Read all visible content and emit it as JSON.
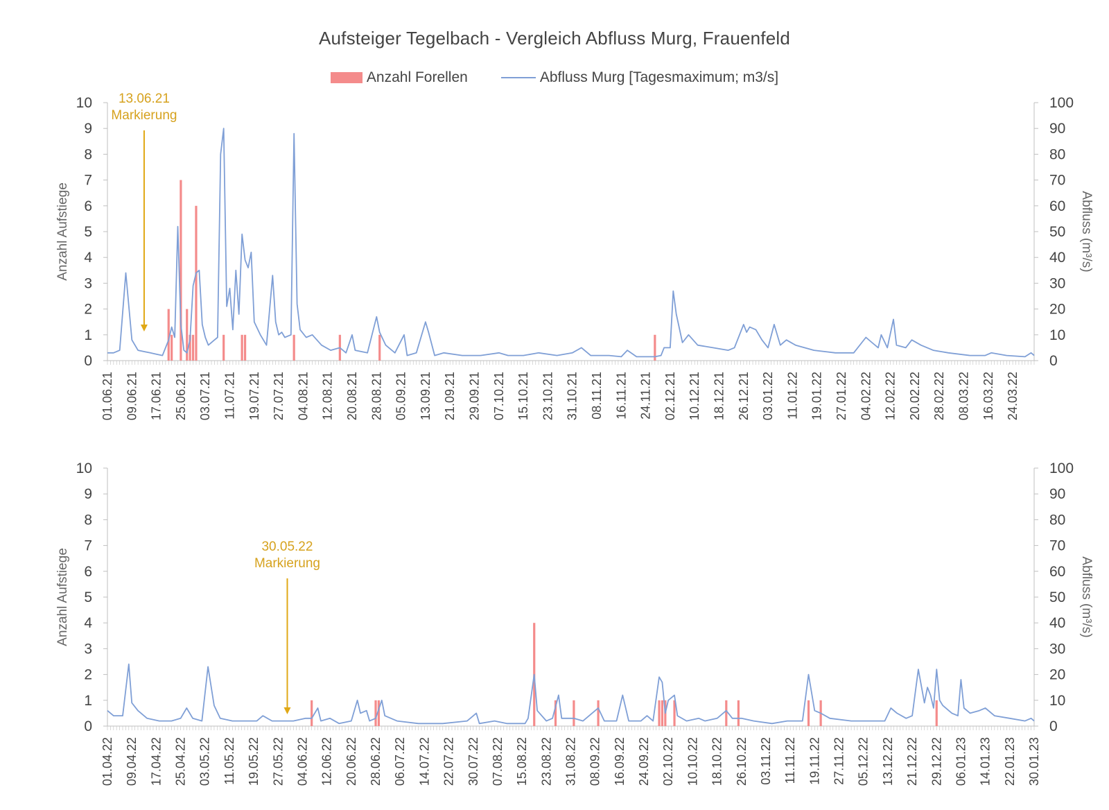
{
  "title": "Aufsteiger Tegelbach - Vergleich Abfluss Murg, Frauenfeld",
  "legend": {
    "bar_label": "Anzahl Forellen",
    "line_label": "Abfluss Murg [Tagesmaximum; m3/s]"
  },
  "colors": {
    "bar": "#f48b8b",
    "line": "#7f9fd6",
    "annotation": "#e0a815",
    "text": "#444444"
  },
  "chart_data": [
    {
      "type": "bar+line",
      "ylabel_left": "Anzahl Aufstiege",
      "ylabel_right": "Abfluss (m³/s)",
      "ylim_left": [
        0,
        10
      ],
      "ylim_right": [
        0,
        100
      ],
      "y_ticks_left": [
        "0",
        "1",
        "2",
        "3",
        "4",
        "5",
        "6",
        "7",
        "8",
        "9",
        "10"
      ],
      "y_ticks_right": [
        "0",
        "10",
        "20",
        "30",
        "40",
        "50",
        "60",
        "70",
        "80",
        "90",
        "100"
      ],
      "x_range": [
        "2021-06-01",
        "2022-03-31"
      ],
      "x_ticks": [
        "01.06.21",
        "09.06.21",
        "17.06.21",
        "25.06.21",
        "03.07.21",
        "11.07.21",
        "19.07.21",
        "27.07.21",
        "04.08.21",
        "12.08.21",
        "20.08.21",
        "28.08.21",
        "05.09.21",
        "13.09.21",
        "21.09.21",
        "29.09.21",
        "07.10.21",
        "15.10.21",
        "23.10.21",
        "31.10.21",
        "08.11.21",
        "16.11.21",
        "24.11.21",
        "02.12.21",
        "10.12.21",
        "18.12.21",
        "26.12.21",
        "03.01.22",
        "11.01.22",
        "19.01.22",
        "27.01.22",
        "04.02.22",
        "12.02.22",
        "20.02.22",
        "28.02.22",
        "08.03.22",
        "16.03.22",
        "24.03.22"
      ],
      "annotation": {
        "date": "13.06.21",
        "label": "Markierung",
        "x": "2021-06-13"
      },
      "bars": [
        {
          "x": "2021-06-21",
          "value": 2
        },
        {
          "x": "2021-06-22",
          "value": 1
        },
        {
          "x": "2021-06-25",
          "value": 7
        },
        {
          "x": "2021-06-27",
          "value": 2
        },
        {
          "x": "2021-06-28",
          "value": 1
        },
        {
          "x": "2021-06-29",
          "value": 1
        },
        {
          "x": "2021-06-30",
          "value": 6
        },
        {
          "x": "2021-07-09",
          "value": 1
        },
        {
          "x": "2021-07-15",
          "value": 1
        },
        {
          "x": "2021-07-16",
          "value": 1
        },
        {
          "x": "2021-08-01",
          "value": 1
        },
        {
          "x": "2021-08-16",
          "value": 1
        },
        {
          "x": "2021-08-29",
          "value": 1
        },
        {
          "x": "2021-11-27",
          "value": 1
        }
      ],
      "line": [
        [
          "2021-06-01",
          3
        ],
        [
          "2021-06-03",
          3
        ],
        [
          "2021-06-05",
          4
        ],
        [
          "2021-06-07",
          34
        ],
        [
          "2021-06-09",
          8
        ],
        [
          "2021-06-11",
          4
        ],
        [
          "2021-06-13",
          3.5
        ],
        [
          "2021-06-15",
          3
        ],
        [
          "2021-06-17",
          2.5
        ],
        [
          "2021-06-19",
          2
        ],
        [
          "2021-06-21",
          8
        ],
        [
          "2021-06-22",
          13
        ],
        [
          "2021-06-23",
          9
        ],
        [
          "2021-06-24",
          52
        ],
        [
          "2021-06-25",
          14
        ],
        [
          "2021-06-26",
          4
        ],
        [
          "2021-06-27",
          3
        ],
        [
          "2021-06-28",
          8
        ],
        [
          "2021-06-29",
          29
        ],
        [
          "2021-06-30",
          34
        ],
        [
          "2021-07-01",
          35
        ],
        [
          "2021-07-02",
          14
        ],
        [
          "2021-07-03",
          9
        ],
        [
          "2021-07-04",
          6
        ],
        [
          "2021-07-06",
          8
        ],
        [
          "2021-07-07",
          9
        ],
        [
          "2021-07-08",
          80
        ],
        [
          "2021-07-09",
          90
        ],
        [
          "2021-07-10",
          21
        ],
        [
          "2021-07-11",
          28
        ],
        [
          "2021-07-12",
          12
        ],
        [
          "2021-07-13",
          35
        ],
        [
          "2021-07-14",
          18
        ],
        [
          "2021-07-15",
          49
        ],
        [
          "2021-07-16",
          39
        ],
        [
          "2021-07-17",
          36
        ],
        [
          "2021-07-18",
          42
        ],
        [
          "2021-07-19",
          15
        ],
        [
          "2021-07-21",
          10
        ],
        [
          "2021-07-23",
          6
        ],
        [
          "2021-07-25",
          33
        ],
        [
          "2021-07-26",
          15
        ],
        [
          "2021-07-27",
          10
        ],
        [
          "2021-07-28",
          11
        ],
        [
          "2021-07-29",
          9
        ],
        [
          "2021-07-31",
          10
        ],
        [
          "2021-08-01",
          88
        ],
        [
          "2021-08-02",
          22
        ],
        [
          "2021-08-03",
          12
        ],
        [
          "2021-08-05",
          9
        ],
        [
          "2021-08-07",
          10
        ],
        [
          "2021-08-10",
          6
        ],
        [
          "2021-08-13",
          4
        ],
        [
          "2021-08-16",
          5
        ],
        [
          "2021-08-18",
          3
        ],
        [
          "2021-08-20",
          10
        ],
        [
          "2021-08-21",
          4
        ],
        [
          "2021-08-25",
          3
        ],
        [
          "2021-08-28",
          17
        ],
        [
          "2021-08-29",
          11
        ],
        [
          "2021-08-31",
          6
        ],
        [
          "2021-09-03",
          3
        ],
        [
          "2021-09-06",
          10
        ],
        [
          "2021-09-07",
          2
        ],
        [
          "2021-09-10",
          3
        ],
        [
          "2021-09-13",
          15
        ],
        [
          "2021-09-14",
          11
        ],
        [
          "2021-09-16",
          2
        ],
        [
          "2021-09-19",
          3
        ],
        [
          "2021-09-25",
          2
        ],
        [
          "2021-10-01",
          2
        ],
        [
          "2021-10-07",
          3
        ],
        [
          "2021-10-10",
          2
        ],
        [
          "2021-10-15",
          2
        ],
        [
          "2021-10-20",
          3
        ],
        [
          "2021-10-26",
          2
        ],
        [
          "2021-10-31",
          3
        ],
        [
          "2021-11-03",
          5
        ],
        [
          "2021-11-06",
          2
        ],
        [
          "2021-11-12",
          2
        ],
        [
          "2021-11-16",
          1.5
        ],
        [
          "2021-11-18",
          4
        ],
        [
          "2021-11-21",
          1.5
        ],
        [
          "2021-11-27",
          1.5
        ],
        [
          "2021-11-29",
          2
        ],
        [
          "2021-11-30",
          5
        ],
        [
          "2021-12-02",
          5
        ],
        [
          "2021-12-03",
          27
        ],
        [
          "2021-12-04",
          18
        ],
        [
          "2021-12-06",
          7
        ],
        [
          "2021-12-08",
          10
        ],
        [
          "2021-12-11",
          6
        ],
        [
          "2021-12-16",
          5
        ],
        [
          "2021-12-21",
          4
        ],
        [
          "2021-12-23",
          5
        ],
        [
          "2021-12-26",
          14
        ],
        [
          "2021-12-27",
          11
        ],
        [
          "2021-12-28",
          13
        ],
        [
          "2021-12-30",
          12
        ],
        [
          "2022-01-01",
          8
        ],
        [
          "2022-01-03",
          5
        ],
        [
          "2022-01-05",
          14
        ],
        [
          "2022-01-07",
          6
        ],
        [
          "2022-01-09",
          8
        ],
        [
          "2022-01-12",
          6
        ],
        [
          "2022-01-18",
          4
        ],
        [
          "2022-01-25",
          3
        ],
        [
          "2022-01-31",
          3
        ],
        [
          "2022-02-04",
          9
        ],
        [
          "2022-02-06",
          7
        ],
        [
          "2022-02-08",
          5
        ],
        [
          "2022-02-09",
          10
        ],
        [
          "2022-02-11",
          5
        ],
        [
          "2022-02-13",
          16
        ],
        [
          "2022-02-14",
          6
        ],
        [
          "2022-02-17",
          5
        ],
        [
          "2022-02-19",
          8
        ],
        [
          "2022-02-22",
          6
        ],
        [
          "2022-02-26",
          4
        ],
        [
          "2022-03-03",
          3
        ],
        [
          "2022-03-10",
          2
        ],
        [
          "2022-03-15",
          2
        ],
        [
          "2022-03-17",
          3
        ],
        [
          "2022-03-22",
          2
        ],
        [
          "2022-03-28",
          1.5
        ],
        [
          "2022-03-30",
          3
        ],
        [
          "2022-03-31",
          2
        ]
      ]
    },
    {
      "type": "bar+line",
      "ylabel_left": "Anzahl Aufstiege",
      "ylabel_right": "Abfluss (m³/s)",
      "ylim_left": [
        0,
        10
      ],
      "ylim_right": [
        0,
        100
      ],
      "y_ticks_left": [
        "0",
        "1",
        "2",
        "3",
        "4",
        "5",
        "6",
        "7",
        "8",
        "9",
        "10"
      ],
      "y_ticks_right": [
        "0",
        "10",
        "20",
        "30",
        "40",
        "50",
        "60",
        "70",
        "80",
        "90",
        "100"
      ],
      "x_range": [
        "2022-04-01",
        "2023-01-30"
      ],
      "x_ticks": [
        "01.04.22",
        "09.04.22",
        "17.04.22",
        "25.04.22",
        "03.05.22",
        "11.05.22",
        "19.05.22",
        "27.05.22",
        "04.06.22",
        "12.06.22",
        "20.06.22",
        "28.06.22",
        "06.07.22",
        "14.07.22",
        "22.07.22",
        "30.07.22",
        "07.08.22",
        "15.08.22",
        "23.08.22",
        "31.08.22",
        "08.09.22",
        "16.09.22",
        "24.09.22",
        "02.10.22",
        "10.10.22",
        "18.10.22",
        "26.10.22",
        "03.11.22",
        "11.11.22",
        "19.11.22",
        "27.11.22",
        "05.12.22",
        "13.12.22",
        "21.12.22",
        "29.12.22",
        "06.01.23",
        "14.01.23",
        "22.01.23",
        "30.01.23"
      ],
      "annotation": {
        "date": "30.05.22",
        "label": "Markierung",
        "x": "2022-05-30"
      },
      "bars": [
        {
          "x": "2022-06-07",
          "value": 1
        },
        {
          "x": "2022-06-28",
          "value": 1
        },
        {
          "x": "2022-06-29",
          "value": 1
        },
        {
          "x": "2022-08-19",
          "value": 4
        },
        {
          "x": "2022-08-26",
          "value": 1
        },
        {
          "x": "2022-09-01",
          "value": 1
        },
        {
          "x": "2022-09-09",
          "value": 1
        },
        {
          "x": "2022-09-29",
          "value": 1
        },
        {
          "x": "2022-09-30",
          "value": 1
        },
        {
          "x": "2022-10-01",
          "value": 1
        },
        {
          "x": "2022-10-04",
          "value": 1
        },
        {
          "x": "2022-10-21",
          "value": 1
        },
        {
          "x": "2022-10-25",
          "value": 1
        },
        {
          "x": "2022-11-17",
          "value": 1
        },
        {
          "x": "2022-11-21",
          "value": 1
        },
        {
          "x": "2022-12-29",
          "value": 1
        }
      ],
      "line": [
        [
          "2022-04-01",
          6
        ],
        [
          "2022-04-03",
          4
        ],
        [
          "2022-04-06",
          4
        ],
        [
          "2022-04-08",
          24
        ],
        [
          "2022-04-09",
          9
        ],
        [
          "2022-04-11",
          6
        ],
        [
          "2022-04-14",
          3
        ],
        [
          "2022-04-18",
          2
        ],
        [
          "2022-04-22",
          2
        ],
        [
          "2022-04-25",
          3
        ],
        [
          "2022-04-27",
          7
        ],
        [
          "2022-04-29",
          3
        ],
        [
          "2022-05-02",
          2
        ],
        [
          "2022-05-04",
          23
        ],
        [
          "2022-05-06",
          8
        ],
        [
          "2022-05-08",
          3
        ],
        [
          "2022-05-12",
          2
        ],
        [
          "2022-05-20",
          2
        ],
        [
          "2022-05-22",
          4
        ],
        [
          "2022-05-25",
          2
        ],
        [
          "2022-05-28",
          2
        ],
        [
          "2022-06-01",
          2
        ],
        [
          "2022-06-05",
          3
        ],
        [
          "2022-06-07",
          3
        ],
        [
          "2022-06-09",
          7
        ],
        [
          "2022-06-10",
          2
        ],
        [
          "2022-06-13",
          3
        ],
        [
          "2022-06-16",
          1
        ],
        [
          "2022-06-20",
          2
        ],
        [
          "2022-06-22",
          10
        ],
        [
          "2022-06-23",
          5
        ],
        [
          "2022-06-25",
          6
        ],
        [
          "2022-06-26",
          2
        ],
        [
          "2022-06-28",
          3
        ],
        [
          "2022-06-30",
          10
        ],
        [
          "2022-07-01",
          4
        ],
        [
          "2022-07-05",
          2
        ],
        [
          "2022-07-12",
          1
        ],
        [
          "2022-07-20",
          1
        ],
        [
          "2022-07-28",
          2
        ],
        [
          "2022-07-31",
          5
        ],
        [
          "2022-08-01",
          1
        ],
        [
          "2022-08-06",
          2
        ],
        [
          "2022-08-10",
          1
        ],
        [
          "2022-08-16",
          1
        ],
        [
          "2022-08-17",
          3
        ],
        [
          "2022-08-19",
          20
        ],
        [
          "2022-08-20",
          6
        ],
        [
          "2022-08-23",
          2
        ],
        [
          "2022-08-25",
          3
        ],
        [
          "2022-08-27",
          12
        ],
        [
          "2022-08-28",
          3
        ],
        [
          "2022-09-01",
          3
        ],
        [
          "2022-09-04",
          2
        ],
        [
          "2022-09-08",
          6
        ],
        [
          "2022-09-09",
          7
        ],
        [
          "2022-09-11",
          2
        ],
        [
          "2022-09-15",
          2
        ],
        [
          "2022-09-17",
          12
        ],
        [
          "2022-09-19",
          2
        ],
        [
          "2022-09-23",
          2
        ],
        [
          "2022-09-25",
          4
        ],
        [
          "2022-09-27",
          2
        ],
        [
          "2022-09-29",
          19
        ],
        [
          "2022-09-30",
          17
        ],
        [
          "2022-10-01",
          5
        ],
        [
          "2022-10-02",
          10
        ],
        [
          "2022-10-04",
          12
        ],
        [
          "2022-10-05",
          4
        ],
        [
          "2022-10-08",
          2
        ],
        [
          "2022-10-12",
          3
        ],
        [
          "2022-10-14",
          2
        ],
        [
          "2022-10-18",
          3
        ],
        [
          "2022-10-21",
          6
        ],
        [
          "2022-10-23",
          3
        ],
        [
          "2022-10-26",
          3
        ],
        [
          "2022-10-30",
          2
        ],
        [
          "2022-11-05",
          1
        ],
        [
          "2022-11-10",
          2
        ],
        [
          "2022-11-15",
          2
        ],
        [
          "2022-11-17",
          20
        ],
        [
          "2022-11-19",
          6
        ],
        [
          "2022-11-21",
          5
        ],
        [
          "2022-11-24",
          3
        ],
        [
          "2022-12-01",
          2
        ],
        [
          "2022-12-08",
          2
        ],
        [
          "2022-12-12",
          2
        ],
        [
          "2022-12-14",
          7
        ],
        [
          "2022-12-16",
          5
        ],
        [
          "2022-12-19",
          3
        ],
        [
          "2022-12-21",
          4
        ],
        [
          "2022-12-23",
          22
        ],
        [
          "2022-12-25",
          9
        ],
        [
          "2022-12-26",
          15
        ],
        [
          "2022-12-27",
          12
        ],
        [
          "2022-12-28",
          7
        ],
        [
          "2022-12-29",
          22
        ],
        [
          "2022-12-30",
          10
        ],
        [
          "2022-12-31",
          8
        ],
        [
          "2023-01-03",
          5
        ],
        [
          "2023-01-05",
          4
        ],
        [
          "2023-01-06",
          18
        ],
        [
          "2023-01-07",
          7
        ],
        [
          "2023-01-09",
          5
        ],
        [
          "2023-01-12",
          6
        ],
        [
          "2023-01-14",
          7
        ],
        [
          "2023-01-17",
          4
        ],
        [
          "2023-01-22",
          3
        ],
        [
          "2023-01-27",
          2
        ],
        [
          "2023-01-29",
          3
        ],
        [
          "2023-01-30",
          2
        ]
      ]
    }
  ]
}
